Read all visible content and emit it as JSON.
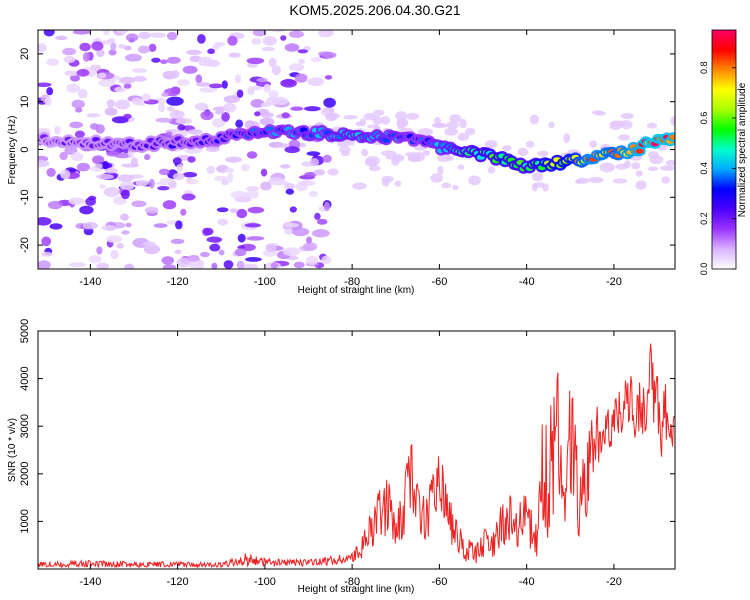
{
  "title": "KOM5.2025.206.04.30.G21",
  "chart_data": [
    {
      "type": "heatmap",
      "xlabel": "Height of straight line (km)",
      "ylabel": "Frequency (Hz)",
      "xlim": [
        -152,
        -6
      ],
      "ylim": [
        -25,
        25
      ],
      "xticks": [
        -140,
        -120,
        -100,
        -80,
        -60,
        -40,
        -20
      ],
      "yticks": [
        -20,
        -10,
        0,
        10,
        20
      ],
      "colorbar": {
        "label": "Normalized spectral amplitude",
        "range": [
          0,
          0.95
        ],
        "ticks": [
          0.0,
          0.2,
          0.4,
          0.6,
          0.8
        ],
        "tick_labels": [
          "0.0",
          "0.2",
          "0.4",
          "0.6",
          "0.8"
        ],
        "colormap": [
          "#ffffff",
          "#d9b3ff",
          "#9a33ff",
          "#4b00ff",
          "#0000ff",
          "#00aaff",
          "#00ffcc",
          "#00ff00",
          "#aaff00",
          "#ffff00",
          "#ff8800",
          "#ff0000",
          "#ff0066"
        ]
      },
      "ridge": {
        "x": [
          -150,
          -140,
          -130,
          -120,
          -110,
          -100,
          -90,
          -80,
          -70,
          -65,
          -60,
          -55,
          -50,
          -45,
          -40,
          -35,
          -30,
          -25,
          -20,
          -15,
          -10,
          -6
        ],
        "frequency": [
          2,
          1.5,
          1,
          1.5,
          2.5,
          3.5,
          3.5,
          3,
          2.5,
          2,
          0.5,
          -0.5,
          -1,
          -2,
          -3.5,
          -3,
          -2.5,
          -1.5,
          -1,
          0,
          2,
          2.5
        ],
        "amplitude": [
          0.2,
          0.22,
          0.24,
          0.26,
          0.3,
          0.38,
          0.4,
          0.45,
          0.4,
          0.35,
          0.42,
          0.5,
          0.55,
          0.6,
          0.55,
          0.65,
          0.72,
          0.85,
          0.8,
          0.88,
          0.95,
          0.9
        ]
      },
      "noise_region_x": [
        -152,
        -85
      ]
    },
    {
      "type": "line",
      "xlabel": "Height of straight line (km)",
      "ylabel": "SNR (10 * v/v)",
      "xlim": [
        -152,
        -6
      ],
      "ylim": [
        0,
        5000
      ],
      "xticks": [
        -140,
        -120,
        -100,
        -80,
        -60,
        -40,
        -20
      ],
      "yticks": [
        1000,
        2000,
        3000,
        4000,
        5000
      ],
      "color": "#ee2222",
      "series": [
        {
          "x": [
            -152,
            -140,
            -130,
            -120,
            -110,
            -104,
            -100,
            -90,
            -82,
            -80,
            -78,
            -75,
            -72,
            -70,
            -68,
            -67,
            -66,
            -65,
            -63,
            -61,
            -60,
            -58,
            -56,
            -54,
            -52,
            -50,
            -48,
            -46,
            -44,
            -42,
            -40,
            -38,
            -37,
            -36,
            -35,
            -34.5,
            -34,
            -33,
            -32,
            -31,
            -30,
            -29,
            -28,
            -27,
            -26,
            -25,
            -24,
            -23,
            -22,
            -20,
            -18,
            -16,
            -15,
            -14,
            -13,
            -12,
            -11.5,
            -11,
            -10,
            -9,
            -8,
            -7,
            -6
          ],
          "envelope_max": [
            150,
            180,
            160,
            150,
            140,
            350,
            220,
            200,
            320,
            350,
            600,
            1400,
            2100,
            1100,
            1900,
            2600,
            2800,
            1800,
            1500,
            2400,
            2500,
            1600,
            1000,
            800,
            500,
            900,
            700,
            1400,
            1700,
            1300,
            1700,
            900,
            2100,
            3800,
            2500,
            4500,
            3800,
            4700,
            3500,
            2900,
            4000,
            3500,
            2100,
            2400,
            2800,
            3300,
            3600,
            2900,
            3300,
            3500,
            3900,
            4100,
            3500,
            4300,
            3900,
            4800,
            5000,
            4300,
            4100,
            3600,
            4000,
            3600,
            3300
          ],
          "envelope_min": [
            40,
            40,
            40,
            40,
            40,
            60,
            50,
            60,
            100,
            120,
            200,
            500,
            700,
            400,
            700,
            1000,
            1100,
            800,
            600,
            900,
            1000,
            600,
            300,
            150,
            100,
            200,
            150,
            400,
            600,
            400,
            600,
            200,
            300,
            700,
            400,
            1400,
            900,
            1600,
            1200,
            800,
            1500,
            1300,
            600,
            500,
            1000,
            1800,
            2300,
            2100,
            2400,
            2600,
            2900,
            3000,
            2600,
            3000,
            2700,
            3200,
            3500,
            2900,
            2600,
            2200,
            2600,
            2200,
            2100
          ]
        }
      ]
    }
  ]
}
